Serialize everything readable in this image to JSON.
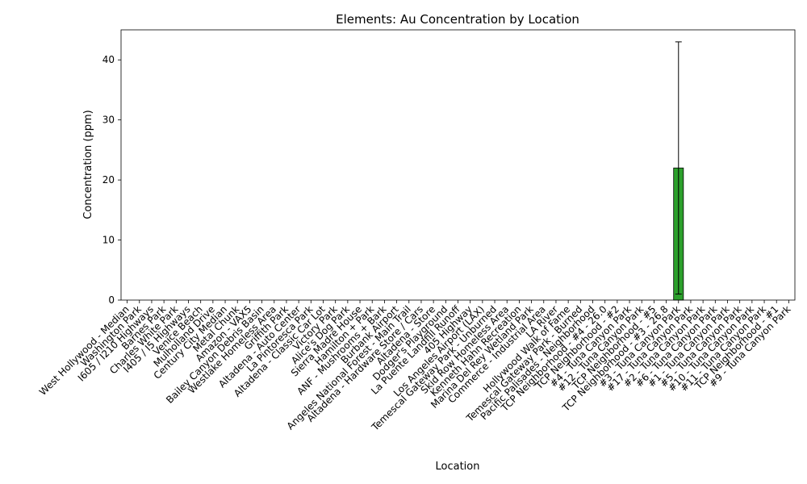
{
  "chart_data": {
    "type": "bar",
    "title": "Elements: Au Concentration by Location",
    "xlabel": "Location",
    "ylabel": "Concentration (ppm)",
    "ylim": [
      0,
      45
    ],
    "yticks": [
      0,
      10,
      20,
      30,
      40
    ],
    "grid": false,
    "legend": "none",
    "bar_color": "#2ca02c",
    "categories": [
      "West Hollywood - Median",
      "Washington Park",
      "I605 / I210 Highways",
      "Barnes Park",
      "Charles White Park",
      "I405 / I5 Highways",
      "Venice Beach",
      "Mulholland Drive",
      "Century City Median",
      "Metal Chunk",
      "Amazon - VAX5",
      "Bailey Canyon Debris Basin",
      "Westlake Homeless Area",
      "Griffith Park",
      "Altadena - Auto Center",
      "La Pintoresca Park",
      "Altadena - Classic Car Lot",
      "Victory Park",
      "Alice's Dog Park",
      "Sierra Madre House",
      "Hamilton + Park",
      "ANF - Mushrooms + Bark",
      "Burbank Airport",
      "Angeles National Forest - Main Trail",
      "Altadena - Hardware Store / Cars",
      "Altadena - Store",
      "Dodger's Playground",
      "La Puente Landfill Runoff",
      "405 Highway",
      "Los Angeles Airport (LAX)",
      "Temescal Gateway Park - Unburned",
      "Skid Row Homeless Area",
      "Kenneth Hahn Recreation",
      "Marina Del Rey Wetland Park",
      "Commerce - Industrial Area",
      "LA River",
      "Hollywood Walk of Fame",
      "Temescal Gateway Park - Burned",
      "Pacific Palisades - Neighborhood",
      "TCP Neighborhood - #4 - 26.0",
      "TCP Neighborhood - #2",
      "#4 - Tuna Canyon Park",
      "#12 - Tuna Canyon Park",
      "TCP Neighborhood - #5",
      "TCP Neighborhood - #3 - 26.8",
      "#3 - Tuna Canyon Park",
      "#17 - Tuna Canyon Park",
      "#2 - Tuna Canyon Park",
      "#6 - Tuna Canyon Park",
      "#1 - Tuna Canyon Park",
      "#5 - Tuna Canyon Park",
      "#10 - Tuna Canyon Park",
      "#11 - Tuna Canyon Park",
      "TCP Neighborhood - #1",
      "#9 - Tuna Canyon Park"
    ],
    "values": [
      0,
      0,
      0,
      0,
      0,
      0,
      0,
      0,
      0,
      0,
      0,
      0,
      0,
      0,
      0,
      0,
      0,
      0,
      0,
      0,
      0,
      0,
      0,
      0,
      0,
      0,
      0,
      0,
      0,
      0,
      0,
      0,
      0,
      0,
      0,
      0,
      0,
      0,
      0,
      0,
      0,
      0,
      0,
      0,
      0,
      22,
      0,
      0,
      0,
      0,
      0,
      0,
      0,
      0,
      0
    ],
    "error_bars": [
      {
        "category": "#3 - Tuna Canyon Park",
        "low": 1,
        "high": 43
      }
    ]
  }
}
